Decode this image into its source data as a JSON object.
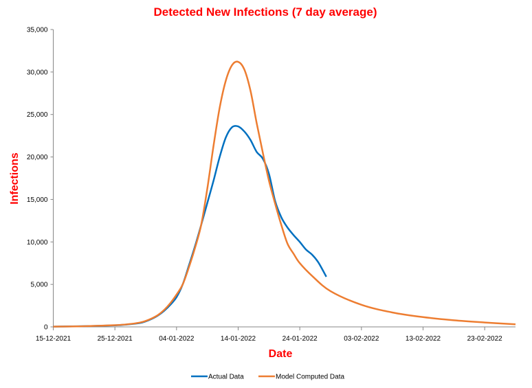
{
  "chart_data": {
    "type": "line",
    "title": "Detected New Infections (7 day average)",
    "xlabel": "Date",
    "ylabel": "Infections",
    "x_start_date": "15-12-2021",
    "x_unit": "days since 15-12-2021",
    "xlim": [
      0,
      75
    ],
    "ylim": [
      0,
      35000
    ],
    "x_tick_labels": [
      "15-12-2021",
      "25-12-2021",
      "04-01-2022",
      "14-01-2022",
      "24-01-2022",
      "03-02-2022",
      "13-02-2022",
      "23-02-2022"
    ],
    "x_tick_values": [
      0,
      10,
      20,
      30,
      40,
      50,
      60,
      70
    ],
    "y_ticks": [
      0,
      5000,
      10000,
      15000,
      20000,
      25000,
      30000,
      35000
    ],
    "y_tick_labels": [
      "0",
      "5,000",
      "10,000",
      "15,000",
      "20,000",
      "25,000",
      "30,000",
      "35,000"
    ],
    "grid": false,
    "legend_position": "bottom",
    "series": [
      {
        "name": "Actual Data",
        "color": "#0070C0",
        "x": [
          0,
          5,
          10,
          12,
          14,
          15,
          16,
          17,
          18,
          19,
          20,
          21,
          22,
          23,
          24,
          25,
          26,
          27,
          28,
          29,
          30,
          31,
          32,
          33,
          34,
          35,
          36,
          37,
          38,
          39,
          40,
          41,
          42,
          43,
          44.3
        ],
        "y": [
          30,
          80,
          180,
          280,
          450,
          650,
          950,
          1350,
          1900,
          2600,
          3500,
          5000,
          7200,
          9500,
          12000,
          14600,
          17200,
          20000,
          22300,
          23500,
          23600,
          23000,
          22000,
          20600,
          19800,
          18000,
          14800,
          12900,
          11700,
          10800,
          10000,
          9100,
          8500,
          7600,
          5900
        ]
      },
      {
        "name": "Model Computed Data",
        "color": "#ED7D31",
        "x": [
          0,
          5,
          10,
          12,
          14,
          15,
          16,
          17,
          18,
          19,
          20,
          21,
          22,
          23,
          24,
          25,
          26,
          27,
          28,
          29,
          30,
          31,
          32,
          33,
          34,
          35,
          36,
          37,
          38,
          39,
          40,
          42,
          45,
          50,
          55,
          60,
          65,
          70,
          75
        ],
        "y": [
          30,
          80,
          200,
          300,
          500,
          700,
          1000,
          1400,
          2000,
          2800,
          3800,
          5000,
          7000,
          9300,
          12000,
          16300,
          21300,
          25800,
          29000,
          30800,
          31200,
          30300,
          27800,
          24000,
          20500,
          17200,
          14500,
          12000,
          9800,
          8600,
          7500,
          6000,
          4200,
          2600,
          1700,
          1150,
          780,
          520,
          300
        ]
      }
    ]
  }
}
